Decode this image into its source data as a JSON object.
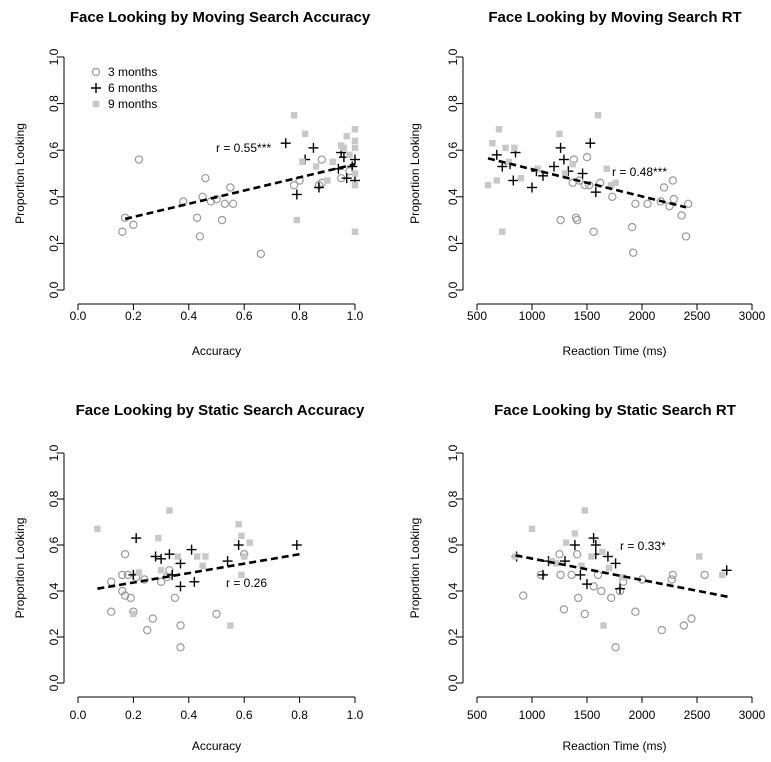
{
  "colors": {
    "m3": "#9a9a9a",
    "m6": "#000000",
    "m9": "#c8c8c8",
    "fit": "#000000"
  },
  "legend": [
    "3 months",
    "6 months",
    "9 months"
  ],
  "chart_data": [
    {
      "type": "scatter",
      "title": "Face Looking by Moving Search Accuracy",
      "xlabel": "Accuracy",
      "ylabel": "Proportion Looking",
      "xlim": [
        0,
        1
      ],
      "ylim": [
        0,
        1
      ],
      "xticks": [
        "0.0",
        "0.2",
        "0.4",
        "0.6",
        "0.8",
        "1.0"
      ],
      "yticks": [
        "0.0",
        "0.2",
        "0.4",
        "0.6",
        "0.8",
        "1.0"
      ],
      "annotation": "r = 0.55***",
      "legend_position": "top-left",
      "fit": [
        [
          0.17,
          0.305
        ],
        [
          1.0,
          0.54
        ]
      ],
      "series": [
        {
          "name": "3 months",
          "marker": "circle",
          "points": [
            [
              0.16,
              0.25
            ],
            [
              0.17,
              0.31
            ],
            [
              0.2,
              0.28
            ],
            [
              0.22,
              0.56
            ],
            [
              0.38,
              0.38
            ],
            [
              0.43,
              0.31
            ],
            [
              0.44,
              0.23
            ],
            [
              0.45,
              0.4
            ],
            [
              0.46,
              0.48
            ],
            [
              0.48,
              0.38
            ],
            [
              0.5,
              0.39
            ],
            [
              0.52,
              0.3
            ],
            [
              0.53,
              0.37
            ],
            [
              0.55,
              0.44
            ],
            [
              0.56,
              0.37
            ],
            [
              0.66,
              0.155
            ],
            [
              0.78,
              0.45
            ],
            [
              0.8,
              0.47
            ],
            [
              0.87,
              0.45
            ],
            [
              0.88,
              0.46
            ],
            [
              0.88,
              0.56
            ],
            [
              0.95,
              0.48
            ],
            [
              0.98,
              0.51
            ]
          ]
        },
        {
          "name": "6 months",
          "marker": "plus",
          "points": [
            [
              0.75,
              0.63
            ],
            [
              0.79,
              0.41
            ],
            [
              0.82,
              0.56
            ],
            [
              0.85,
              0.61
            ],
            [
              0.87,
              0.44
            ],
            [
              0.94,
              0.52
            ],
            [
              0.95,
              0.59
            ],
            [
              0.96,
              0.57
            ],
            [
              0.97,
              0.48
            ],
            [
              0.99,
              0.53
            ],
            [
              1.0,
              0.56
            ],
            [
              1.0,
              0.47
            ]
          ]
        },
        {
          "name": "9 months",
          "marker": "square",
          "points": [
            [
              0.78,
              0.75
            ],
            [
              0.79,
              0.3
            ],
            [
              0.81,
              0.55
            ],
            [
              0.82,
              0.67
            ],
            [
              0.86,
              0.53
            ],
            [
              0.9,
              0.47
            ],
            [
              0.92,
              0.55
            ],
            [
              0.95,
              0.62
            ],
            [
              0.96,
              0.61
            ],
            [
              0.97,
              0.66
            ],
            [
              0.98,
              0.58
            ],
            [
              1.0,
              0.69
            ],
            [
              1.0,
              0.64
            ],
            [
              1.0,
              0.61
            ],
            [
              1.0,
              0.5
            ],
            [
              1.0,
              0.45
            ],
            [
              1.0,
              0.25
            ]
          ]
        }
      ]
    },
    {
      "type": "scatter",
      "title": "Face Looking by Moving Search RT",
      "xlabel": "Reaction Time (ms)",
      "ylabel": "Proportion Looking",
      "xlim": [
        500,
        3000
      ],
      "ylim": [
        0,
        1
      ],
      "xticks": [
        "500",
        "1000",
        "1500",
        "2000",
        "2500",
        "3000"
      ],
      "yticks": [
        "0.0",
        "0.2",
        "0.4",
        "0.6",
        "0.8",
        "1.0"
      ],
      "annotation": "r = 0.48***",
      "fit": [
        [
          600,
          0.565
        ],
        [
          2400,
          0.355
        ]
      ],
      "series": [
        {
          "name": "3 months",
          "marker": "circle",
          "points": [
            [
              1260,
              0.3
            ],
            [
              1370,
              0.46
            ],
            [
              1380,
              0.56
            ],
            [
              1400,
              0.31
            ],
            [
              1410,
              0.3
            ],
            [
              1430,
              0.47
            ],
            [
              1480,
              0.45
            ],
            [
              1500,
              0.57
            ],
            [
              1520,
              0.45
            ],
            [
              1560,
              0.25
            ],
            [
              1620,
              0.46
            ],
            [
              1730,
              0.4
            ],
            [
              1910,
              0.27
            ],
            [
              1920,
              0.16
            ],
            [
              1940,
              0.37
            ],
            [
              2050,
              0.37
            ],
            [
              2170,
              0.38
            ],
            [
              2200,
              0.44
            ],
            [
              2250,
              0.36
            ],
            [
              2280,
              0.47
            ],
            [
              2290,
              0.39
            ],
            [
              2360,
              0.32
            ],
            [
              2400,
              0.23
            ],
            [
              2420,
              0.37
            ]
          ]
        },
        {
          "name": "6 months",
          "marker": "plus",
          "points": [
            [
              680,
              0.58
            ],
            [
              730,
              0.53
            ],
            [
              800,
              0.54
            ],
            [
              830,
              0.47
            ],
            [
              850,
              0.59
            ],
            [
              1000,
              0.44
            ],
            [
              1040,
              0.51
            ],
            [
              1100,
              0.49
            ],
            [
              1200,
              0.53
            ],
            [
              1260,
              0.61
            ],
            [
              1290,
              0.56
            ],
            [
              1330,
              0.51
            ],
            [
              1460,
              0.5
            ],
            [
              1530,
              0.63
            ],
            [
              1580,
              0.42
            ]
          ]
        },
        {
          "name": "9 months",
          "marker": "square",
          "points": [
            [
              600,
              0.45
            ],
            [
              640,
              0.63
            ],
            [
              680,
              0.47
            ],
            [
              700,
              0.69
            ],
            [
              730,
              0.25
            ],
            [
              760,
              0.61
            ],
            [
              790,
              0.55
            ],
            [
              840,
              0.61
            ],
            [
              900,
              0.48
            ],
            [
              1050,
              0.52
            ],
            [
              1250,
              0.67
            ],
            [
              1300,
              0.5
            ],
            [
              1370,
              0.54
            ],
            [
              1600,
              0.75
            ],
            [
              1680,
              0.52
            ],
            [
              1720,
              0.45
            ],
            [
              1760,
              0.46
            ]
          ]
        }
      ]
    },
    {
      "type": "scatter",
      "title": "Face Looking by Static Search Accuracy",
      "xlabel": "Accuracy",
      "ylabel": "Proportion Looking",
      "xlim": [
        0,
        1
      ],
      "ylim": [
        0,
        1
      ],
      "xticks": [
        "0.0",
        "0.2",
        "0.4",
        "0.6",
        "0.8",
        "1.0"
      ],
      "yticks": [
        "0.0",
        "0.2",
        "0.4",
        "0.6",
        "0.8",
        "1.0"
      ],
      "annotation": "r = 0.26",
      "fit": [
        [
          0.07,
          0.41
        ],
        [
          0.8,
          0.56
        ]
      ],
      "series": [
        {
          "name": "3 months",
          "marker": "circle",
          "points": [
            [
              0.12,
              0.44
            ],
            [
              0.12,
              0.31
            ],
            [
              0.16,
              0.47
            ],
            [
              0.16,
              0.4
            ],
            [
              0.17,
              0.38
            ],
            [
              0.17,
              0.56
            ],
            [
              0.18,
              0.47
            ],
            [
              0.19,
              0.37
            ],
            [
              0.2,
              0.31
            ],
            [
              0.21,
              0.46
            ],
            [
              0.24,
              0.45
            ],
            [
              0.25,
              0.23
            ],
            [
              0.27,
              0.28
            ],
            [
              0.3,
              0.44
            ],
            [
              0.32,
              0.46
            ],
            [
              0.33,
              0.49
            ],
            [
              0.35,
              0.37
            ],
            [
              0.37,
              0.25
            ],
            [
              0.37,
              0.155
            ],
            [
              0.5,
              0.3
            ],
            [
              0.6,
              0.56
            ]
          ]
        },
        {
          "name": "6 months",
          "marker": "plus",
          "points": [
            [
              0.2,
              0.47
            ],
            [
              0.21,
              0.63
            ],
            [
              0.28,
              0.55
            ],
            [
              0.3,
              0.54
            ],
            [
              0.33,
              0.56
            ],
            [
              0.34,
              0.47
            ],
            [
              0.37,
              0.52
            ],
            [
              0.37,
              0.42
            ],
            [
              0.41,
              0.58
            ],
            [
              0.42,
              0.44
            ],
            [
              0.54,
              0.53
            ],
            [
              0.58,
              0.6
            ],
            [
              0.79,
              0.6
            ]
          ]
        },
        {
          "name": "9 months",
          "marker": "square",
          "points": [
            [
              0.07,
              0.67
            ],
            [
              0.2,
              0.3
            ],
            [
              0.22,
              0.48
            ],
            [
              0.29,
              0.63
            ],
            [
              0.3,
              0.49
            ],
            [
              0.33,
              0.75
            ],
            [
              0.36,
              0.55
            ],
            [
              0.43,
              0.55
            ],
            [
              0.45,
              0.51
            ],
            [
              0.46,
              0.55
            ],
            [
              0.55,
              0.25
            ],
            [
              0.58,
              0.69
            ],
            [
              0.59,
              0.64
            ],
            [
              0.6,
              0.55
            ],
            [
              0.62,
              0.61
            ],
            [
              0.59,
              0.47
            ]
          ]
        }
      ]
    },
    {
      "type": "scatter",
      "title": "Face Looking by Static Search RT",
      "xlabel": "Reaction Time (ms)",
      "ylabel": "Proportion Looking",
      "xlim": [
        500,
        3000
      ],
      "ylim": [
        0,
        1
      ],
      "xticks": [
        "500",
        "1000",
        "1500",
        "2000",
        "2500",
        "3000"
      ],
      "yticks": [
        "0.0",
        "0.2",
        "0.4",
        "0.6",
        "0.8",
        "1.0"
      ],
      "annotation": "r = 0.33*",
      "fit": [
        [
          850,
          0.555
        ],
        [
          2780,
          0.375
        ]
      ],
      "series": [
        {
          "name": "3 months",
          "marker": "circle",
          "points": [
            [
              920,
              0.38
            ],
            [
              1080,
              0.47
            ],
            [
              1250,
              0.56
            ],
            [
              1260,
              0.47
            ],
            [
              1290,
              0.32
            ],
            [
              1360,
              0.47
            ],
            [
              1410,
              0.56
            ],
            [
              1420,
              0.37
            ],
            [
              1480,
              0.3
            ],
            [
              1560,
              0.42
            ],
            [
              1600,
              0.47
            ],
            [
              1630,
              0.4
            ],
            [
              1720,
              0.37
            ],
            [
              1760,
              0.155
            ],
            [
              1800,
              0.4
            ],
            [
              1830,
              0.44
            ],
            [
              1940,
              0.31
            ],
            [
              2000,
              0.45
            ],
            [
              2180,
              0.23
            ],
            [
              2270,
              0.45
            ],
            [
              2280,
              0.47
            ],
            [
              2380,
              0.25
            ],
            [
              2450,
              0.28
            ],
            [
              2570,
              0.47
            ]
          ]
        },
        {
          "name": "6 months",
          "marker": "plus",
          "points": [
            [
              860,
              0.55
            ],
            [
              1100,
              0.47
            ],
            [
              1150,
              0.53
            ],
            [
              1300,
              0.53
            ],
            [
              1390,
              0.6
            ],
            [
              1440,
              0.47
            ],
            [
              1500,
              0.43
            ],
            [
              1560,
              0.63
            ],
            [
              1580,
              0.6
            ],
            [
              1580,
              0.56
            ],
            [
              1690,
              0.55
            ],
            [
              1760,
              0.52
            ],
            [
              1800,
              0.41
            ],
            [
              2770,
              0.49
            ]
          ]
        },
        {
          "name": "9 months",
          "marker": "square",
          "points": [
            [
              850,
              0.55
            ],
            [
              1000,
              0.67
            ],
            [
              1180,
              0.53
            ],
            [
              1220,
              0.52
            ],
            [
              1310,
              0.61
            ],
            [
              1390,
              0.65
            ],
            [
              1450,
              0.51
            ],
            [
              1480,
              0.75
            ],
            [
              1540,
              0.55
            ],
            [
              1640,
              0.57
            ],
            [
              1650,
              0.25
            ],
            [
              1700,
              0.5
            ],
            [
              1820,
              0.46
            ],
            [
              2520,
              0.55
            ],
            [
              2730,
              0.47
            ]
          ]
        }
      ]
    }
  ]
}
